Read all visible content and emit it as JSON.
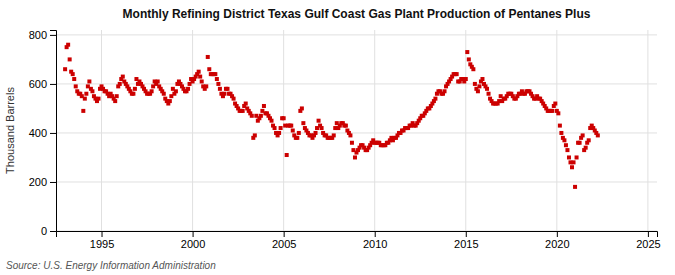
{
  "chart_data": {
    "type": "scatter",
    "title": "Monthly Refining District Texas Gulf Coast Gas Plant Production of Pentanes Plus",
    "ylabel": "Thousand Barrels",
    "annotations": [
      "Source: U.S. Energy Information Administration"
    ],
    "color": "#CC0000",
    "marker": "square",
    "grid": true,
    "xlim": [
      1992.5,
      2025.5
    ],
    "ylim": [
      0,
      820
    ],
    "xticks": [
      1995,
      2000,
      2005,
      2010,
      2015,
      2020,
      2025
    ],
    "yticks": [
      0,
      200,
      400,
      600,
      800
    ],
    "x": [
      1993.0,
      1993.083,
      1993.167,
      1993.25,
      1993.333,
      1993.417,
      1993.5,
      1993.583,
      1993.667,
      1993.75,
      1993.833,
      1993.917,
      1994.0,
      1994.083,
      1994.167,
      1994.25,
      1994.333,
      1994.417,
      1994.5,
      1994.583,
      1994.667,
      1994.75,
      1994.833,
      1994.917,
      1995.0,
      1995.083,
      1995.167,
      1995.25,
      1995.333,
      1995.417,
      1995.5,
      1995.583,
      1995.667,
      1995.75,
      1995.833,
      1995.917,
      1996.0,
      1996.083,
      1996.167,
      1996.25,
      1996.333,
      1996.417,
      1996.5,
      1996.583,
      1996.667,
      1996.75,
      1996.833,
      1996.917,
      1997.0,
      1997.083,
      1997.167,
      1997.25,
      1997.333,
      1997.417,
      1997.5,
      1997.583,
      1997.667,
      1997.75,
      1997.833,
      1997.917,
      1998.0,
      1998.083,
      1998.167,
      1998.25,
      1998.333,
      1998.417,
      1998.5,
      1998.583,
      1998.667,
      1998.75,
      1998.833,
      1998.917,
      1999.0,
      1999.083,
      1999.167,
      1999.25,
      1999.333,
      1999.417,
      1999.5,
      1999.583,
      1999.667,
      1999.75,
      1999.833,
      1999.917,
      2000.0,
      2000.083,
      2000.167,
      2000.25,
      2000.333,
      2000.417,
      2000.5,
      2000.583,
      2000.667,
      2000.75,
      2000.833,
      2000.917,
      2001.0,
      2001.083,
      2001.167,
      2001.25,
      2001.333,
      2001.417,
      2001.5,
      2001.583,
      2001.667,
      2001.75,
      2001.833,
      2001.917,
      2002.0,
      2002.083,
      2002.167,
      2002.25,
      2002.333,
      2002.417,
      2002.5,
      2002.583,
      2002.667,
      2002.75,
      2002.833,
      2002.917,
      2003.0,
      2003.083,
      2003.167,
      2003.25,
      2003.333,
      2003.417,
      2003.5,
      2003.583,
      2003.667,
      2003.75,
      2003.833,
      2003.917,
      2004.0,
      2004.083,
      2004.167,
      2004.25,
      2004.333,
      2004.417,
      2004.5,
      2004.583,
      2004.667,
      2004.75,
      2004.833,
      2004.917,
      2005.0,
      2005.083,
      2005.167,
      2005.25,
      2005.333,
      2005.417,
      2005.5,
      2005.583,
      2005.667,
      2005.75,
      2005.833,
      2005.917,
      2006.0,
      2006.083,
      2006.167,
      2006.25,
      2006.333,
      2006.417,
      2006.5,
      2006.583,
      2006.667,
      2006.75,
      2006.833,
      2006.917,
      2007.0,
      2007.083,
      2007.167,
      2007.25,
      2007.333,
      2007.417,
      2007.5,
      2007.583,
      2007.667,
      2007.75,
      2007.833,
      2007.917,
      2008.0,
      2008.083,
      2008.167,
      2008.25,
      2008.333,
      2008.417,
      2008.5,
      2008.583,
      2008.667,
      2008.75,
      2008.833,
      2008.917,
      2009.0,
      2009.083,
      2009.167,
      2009.25,
      2009.333,
      2009.417,
      2009.5,
      2009.583,
      2009.667,
      2009.75,
      2009.833,
      2009.917,
      2010.0,
      2010.083,
      2010.167,
      2010.25,
      2010.333,
      2010.417,
      2010.5,
      2010.583,
      2010.667,
      2010.75,
      2010.833,
      2010.917,
      2011.0,
      2011.083,
      2011.167,
      2011.25,
      2011.333,
      2011.417,
      2011.5,
      2011.583,
      2011.667,
      2011.75,
      2011.833,
      2011.917,
      2012.0,
      2012.083,
      2012.167,
      2012.25,
      2012.333,
      2012.417,
      2012.5,
      2012.583,
      2012.667,
      2012.75,
      2012.833,
      2012.917,
      2013.0,
      2013.083,
      2013.167,
      2013.25,
      2013.333,
      2013.417,
      2013.5,
      2013.583,
      2013.667,
      2013.75,
      2013.833,
      2013.917,
      2014.0,
      2014.083,
      2014.167,
      2014.25,
      2014.333,
      2014.417,
      2014.5,
      2014.583,
      2014.667,
      2014.75,
      2014.833,
      2014.917,
      2015.0,
      2015.083,
      2015.167,
      2015.25,
      2015.333,
      2015.417,
      2015.5,
      2015.583,
      2015.667,
      2015.75,
      2015.833,
      2015.917,
      2016.0,
      2016.083,
      2016.167,
      2016.25,
      2016.333,
      2016.417,
      2016.5,
      2016.583,
      2016.667,
      2016.75,
      2016.833,
      2016.917,
      2017.0,
      2017.083,
      2017.167,
      2017.25,
      2017.333,
      2017.417,
      2017.5,
      2017.583,
      2017.667,
      2017.75,
      2017.833,
      2017.917,
      2018.0,
      2018.083,
      2018.167,
      2018.25,
      2018.333,
      2018.417,
      2018.5,
      2018.583,
      2018.667,
      2018.75,
      2018.833,
      2018.917,
      2019.0,
      2019.083,
      2019.167,
      2019.25,
      2019.333,
      2019.417,
      2019.5,
      2019.583,
      2019.667,
      2019.75,
      2019.833,
      2019.917,
      2020.0,
      2020.083,
      2020.167,
      2020.25,
      2020.333,
      2020.417,
      2020.5,
      2020.583,
      2020.667,
      2020.75,
      2020.833,
      2020.917,
      2021.0,
      2021.083,
      2021.167,
      2021.25,
      2021.333,
      2021.417,
      2021.5,
      2021.583,
      2021.667,
      2021.75,
      2021.833,
      2021.917,
      2022.0,
      2022.083,
      2022.167,
      2022.25
    ],
    "values": [
      660,
      750,
      760,
      700,
      650,
      640,
      620,
      590,
      570,
      560,
      560,
      550,
      490,
      540,
      560,
      590,
      610,
      580,
      570,
      550,
      540,
      530,
      540,
      580,
      590,
      580,
      570,
      570,
      560,
      550,
      560,
      550,
      540,
      530,
      550,
      590,
      600,
      620,
      630,
      610,
      600,
      590,
      580,
      570,
      560,
      560,
      580,
      620,
      600,
      610,
      600,
      590,
      580,
      570,
      560,
      560,
      560,
      570,
      590,
      610,
      600,
      610,
      590,
      580,
      570,
      560,
      540,
      530,
      520,
      530,
      550,
      580,
      560,
      570,
      600,
      610,
      600,
      590,
      580,
      570,
      570,
      580,
      600,
      620,
      610,
      620,
      630,
      640,
      650,
      630,
      610,
      590,
      580,
      590,
      710,
      660,
      640,
      640,
      640,
      640,
      620,
      600,
      580,
      560,
      550,
      560,
      580,
      580,
      560,
      560,
      550,
      540,
      520,
      510,
      500,
      490,
      490,
      490,
      510,
      520,
      500,
      490,
      480,
      470,
      380,
      390,
      470,
      450,
      460,
      470,
      490,
      510,
      480,
      480,
      470,
      460,
      450,
      430,
      420,
      400,
      390,
      400,
      420,
      460,
      460,
      430,
      310,
      430,
      430,
      430,
      410,
      390,
      380,
      380,
      400,
      490,
      500,
      440,
      420,
      410,
      400,
      390,
      390,
      380,
      390,
      400,
      420,
      450,
      430,
      420,
      400,
      390,
      390,
      380,
      380,
      380,
      380,
      390,
      420,
      440,
      420,
      430,
      440,
      440,
      430,
      430,
      410,
      400,
      390,
      360,
      330,
      300,
      320,
      330,
      340,
      350,
      350,
      340,
      330,
      330,
      340,
      350,
      360,
      370,
      360,
      360,
      360,
      360,
      350,
      350,
      350,
      350,
      360,
      360,
      370,
      380,
      370,
      380,
      380,
      390,
      400,
      400,
      410,
      410,
      420,
      420,
      420,
      430,
      430,
      440,
      430,
      430,
      440,
      450,
      460,
      470,
      470,
      480,
      490,
      500,
      500,
      510,
      520,
      530,
      540,
      560,
      570,
      570,
      560,
      560,
      570,
      590,
      600,
      610,
      620,
      630,
      640,
      640,
      640,
      610,
      610,
      620,
      620,
      610,
      620,
      730,
      700,
      680,
      670,
      660,
      600,
      580,
      570,
      590,
      610,
      620,
      600,
      590,
      580,
      560,
      540,
      530,
      520,
      520,
      520,
      520,
      530,
      550,
      530,
      540,
      540,
      550,
      560,
      560,
      560,
      550,
      540,
      540,
      550,
      560,
      560,
      570,
      560,
      560,
      570,
      570,
      570,
      560,
      550,
      540,
      540,
      550,
      540,
      540,
      530,
      520,
      510,
      500,
      490,
      490,
      490,
      490,
      510,
      520,
      490,
      480,
      430,
      400,
      380,
      370,
      350,
      330,
      300,
      280,
      260,
      280,
      180,
      300,
      360,
      360,
      380,
      390,
      330,
      340,
      360,
      370,
      420,
      430,
      420,
      410,
      400,
      390
    ]
  }
}
